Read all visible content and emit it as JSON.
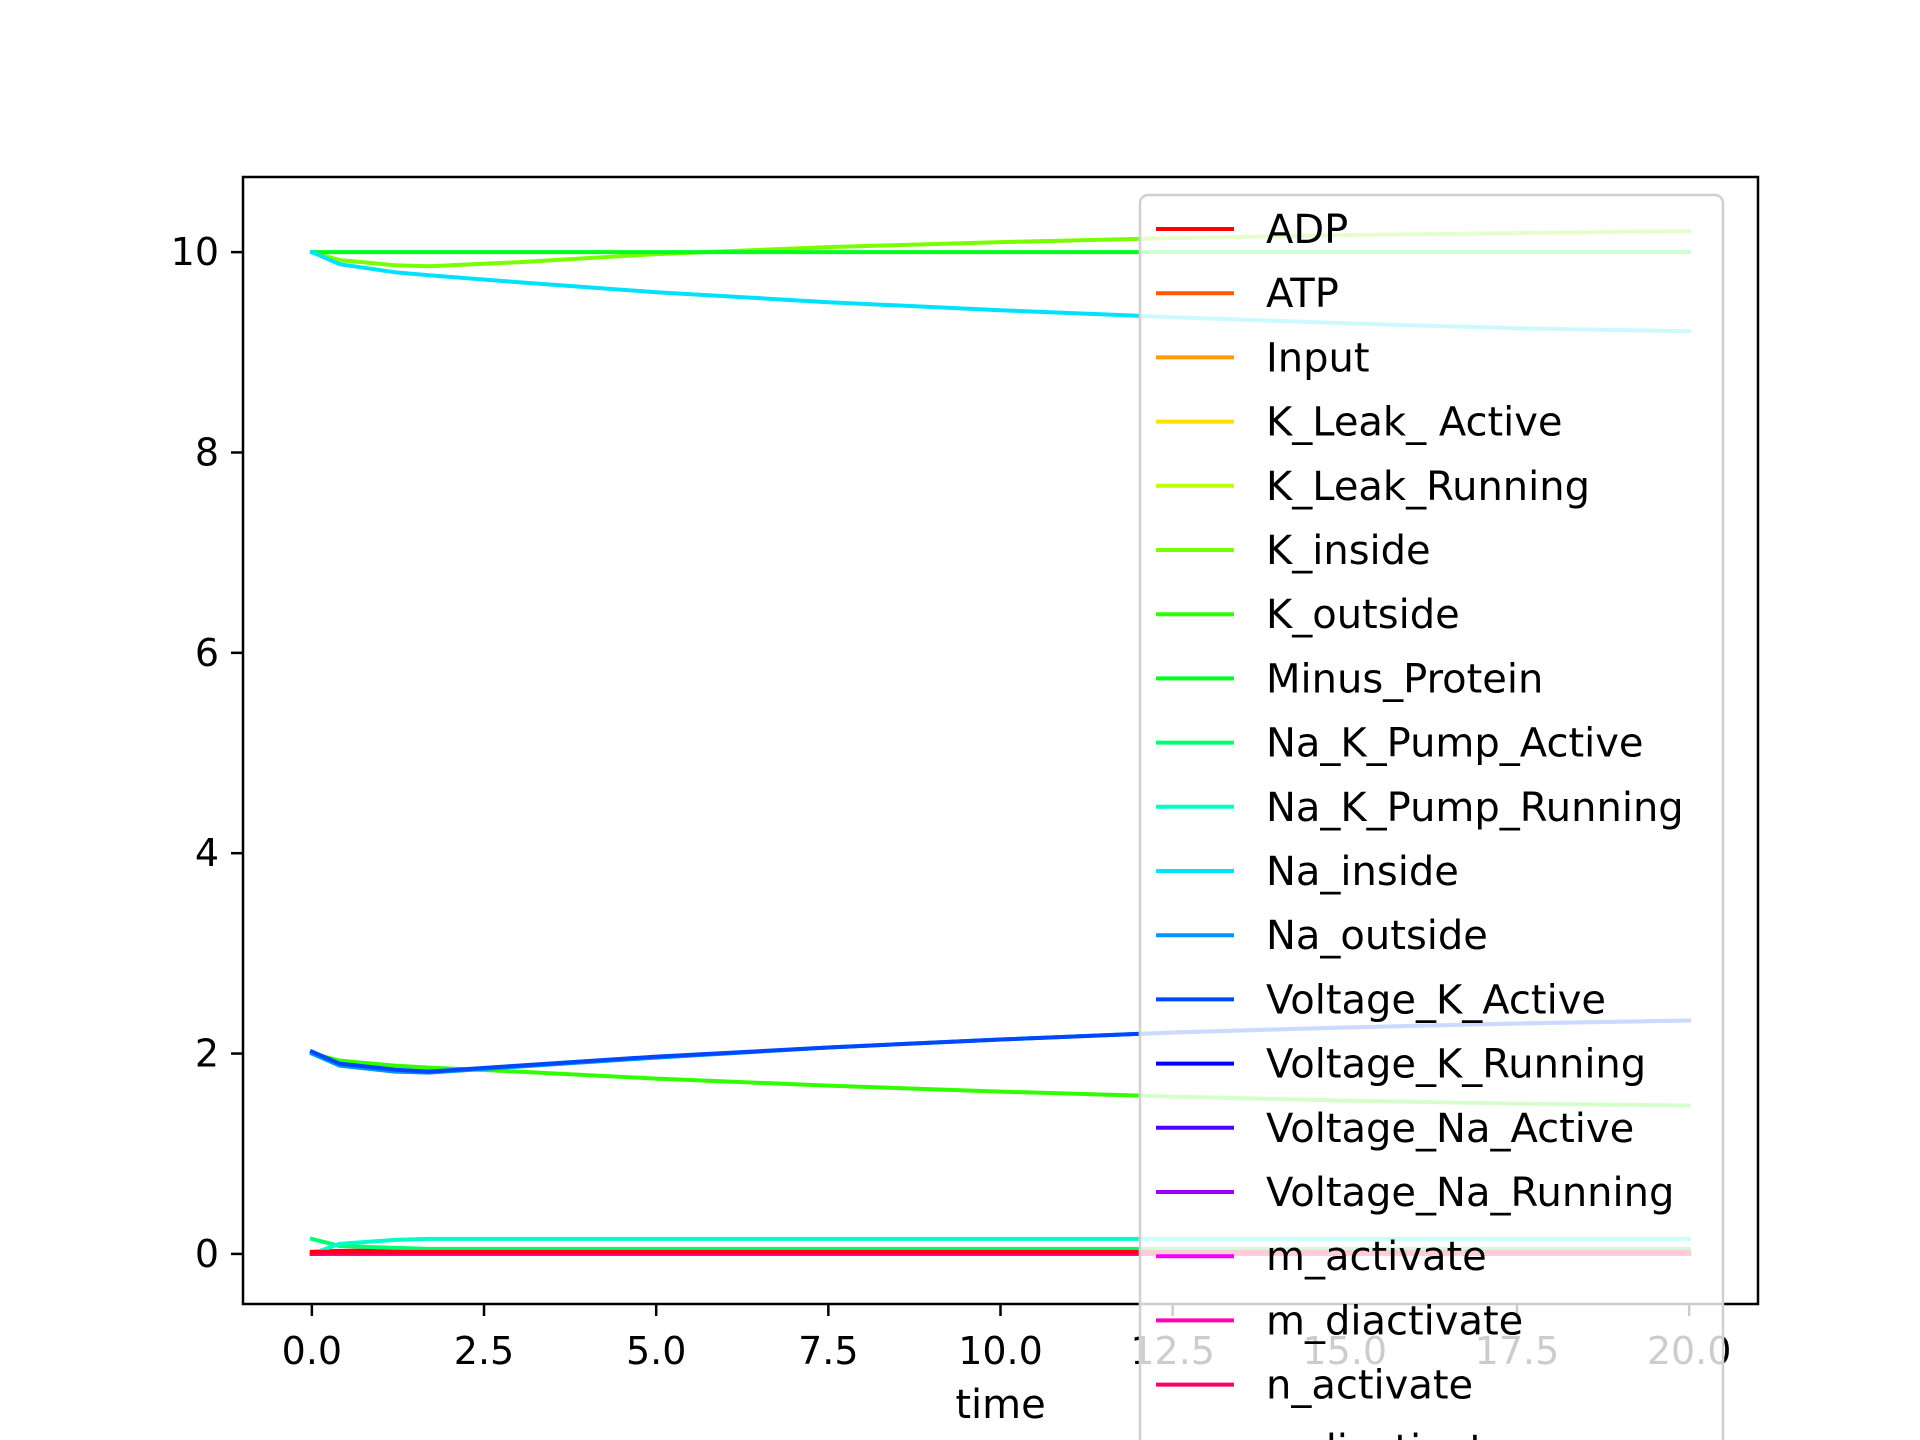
{
  "chart_data": {
    "type": "line",
    "xlabel": "time",
    "ylabel": "",
    "xlim": [
      -1.0,
      21.0
    ],
    "ylim": [
      -0.5,
      10.75
    ],
    "xticks": [
      0.0,
      2.5,
      5.0,
      7.5,
      10.0,
      12.5,
      15.0,
      17.5,
      20.0
    ],
    "xtick_labels": [
      "0.0",
      "2.5",
      "5.0",
      "7.5",
      "10.0",
      "12.5",
      "15.0",
      "17.5",
      "20.0"
    ],
    "yticks": [
      0,
      2,
      4,
      6,
      8,
      10
    ],
    "ytick_labels": [
      "0",
      "2",
      "4",
      "6",
      "8",
      "10"
    ],
    "grid": false,
    "legend_position": "upper-right",
    "x": [
      0,
      0.4,
      1.2,
      1.7,
      3,
      5,
      7.5,
      10,
      12.5,
      15,
      17.5,
      20
    ],
    "series": [
      {
        "name": "ADP",
        "color": "#ff0000",
        "values": [
          0.02,
          0.03,
          0.035,
          0.04,
          0.04,
          0.04,
          0.04,
          0.04,
          0.04,
          0.04,
          0.04,
          0.04
        ]
      },
      {
        "name": "ATP",
        "color": "#ff5a00",
        "values": [
          0.0,
          0.0,
          0.0,
          0.0,
          0.0,
          0.0,
          0.0,
          0.0,
          0.0,
          0.0,
          0.0,
          0.0
        ]
      },
      {
        "name": "Input",
        "color": "#ff9a00",
        "values": [
          0.0,
          0.0,
          0.0,
          0.0,
          0.0,
          0.0,
          0.0,
          0.0,
          0.0,
          0.0,
          0.0,
          0.0
        ]
      },
      {
        "name": "K_Leak_ Active",
        "color": "#ffe000",
        "values": [
          0.0,
          0.0,
          0.0,
          0.0,
          0.0,
          0.0,
          0.0,
          0.0,
          0.0,
          0.0,
          0.0,
          0.0
        ]
      },
      {
        "name": "K_Leak_Running",
        "color": "#c0ff00",
        "values": [
          0.0,
          0.0,
          0.0,
          0.0,
          0.0,
          0.0,
          0.0,
          0.0,
          0.0,
          0.0,
          0.0,
          0.0
        ]
      },
      {
        "name": "K_inside",
        "color": "#78ff00",
        "values": [
          10.0,
          9.92,
          9.87,
          9.86,
          9.9,
          9.98,
          10.05,
          10.1,
          10.14,
          10.17,
          10.19,
          10.21
        ]
      },
      {
        "name": "K_outside",
        "color": "#30ff00",
        "values": [
          2.0,
          1.93,
          1.88,
          1.86,
          1.82,
          1.75,
          1.68,
          1.62,
          1.57,
          1.53,
          1.5,
          1.48
        ]
      },
      {
        "name": "Minus_Protein",
        "color": "#00ff20",
        "values": [
          10.0,
          10.0,
          10.0,
          10.0,
          10.0,
          10.0,
          10.0,
          10.0,
          10.0,
          10.0,
          10.0,
          10.0
        ]
      },
      {
        "name": "Na_K_Pump_Active",
        "color": "#00ff70",
        "values": [
          0.15,
          0.08,
          0.06,
          0.05,
          0.05,
          0.05,
          0.05,
          0.05,
          0.05,
          0.05,
          0.05,
          0.05
        ]
      },
      {
        "name": "Na_K_Pump_Running",
        "color": "#00ffc8",
        "values": [
          0.0,
          0.1,
          0.14,
          0.15,
          0.15,
          0.15,
          0.15,
          0.15,
          0.15,
          0.15,
          0.15,
          0.15
        ]
      },
      {
        "name": "Na_inside",
        "color": "#00e0ff",
        "values": [
          10.0,
          9.88,
          9.8,
          9.77,
          9.7,
          9.6,
          9.5,
          9.42,
          9.35,
          9.29,
          9.24,
          9.21
        ]
      },
      {
        "name": "Na_outside",
        "color": "#0095ff",
        "values": [
          2.0,
          1.88,
          1.82,
          1.81,
          1.87,
          1.96,
          2.06,
          2.14,
          2.21,
          2.26,
          2.3,
          2.33
        ]
      },
      {
        "name": "Voltage_K_Active",
        "color": "#0048ff",
        "values": [
          2.02,
          1.9,
          1.84,
          1.82,
          1.88,
          1.97,
          2.06,
          2.14,
          2.21,
          2.26,
          2.3,
          2.33
        ]
      },
      {
        "name": "Voltage_K_Running",
        "color": "#0000ff",
        "values": [
          0.0,
          0.0,
          0.0,
          0.0,
          0.0,
          0.0,
          0.0,
          0.0,
          0.0,
          0.0,
          0.0,
          0.0
        ]
      },
      {
        "name": "Voltage_Na_Active",
        "color": "#5000ff",
        "values": [
          0.0,
          0.0,
          0.0,
          0.0,
          0.0,
          0.0,
          0.0,
          0.0,
          0.0,
          0.0,
          0.0,
          0.0
        ]
      },
      {
        "name": "Voltage_Na_Running",
        "color": "#a000ff",
        "values": [
          0.0,
          0.0,
          0.0,
          0.0,
          0.0,
          0.0,
          0.0,
          0.0,
          0.0,
          0.0,
          0.0,
          0.0
        ]
      },
      {
        "name": "m_activate",
        "color": "#f000ff",
        "values": [
          0.0,
          0.0,
          0.0,
          0.0,
          0.0,
          0.0,
          0.0,
          0.0,
          0.0,
          0.0,
          0.0,
          0.0
        ]
      },
      {
        "name": "m_diactivate",
        "color": "#ff00b4",
        "values": [
          0.0,
          0.0,
          0.0,
          0.0,
          0.0,
          0.0,
          0.0,
          0.0,
          0.0,
          0.0,
          0.0,
          0.0
        ]
      },
      {
        "name": "n_activate",
        "color": "#ff0064",
        "values": [
          0.0,
          0.01,
          0.01,
          0.01,
          0.01,
          0.01,
          0.01,
          0.01,
          0.01,
          0.01,
          0.01,
          0.01
        ]
      },
      {
        "name": "n_diactivate",
        "color": "#ff0018",
        "values": [
          0.02,
          0.02,
          0.02,
          0.02,
          0.02,
          0.02,
          0.02,
          0.02,
          0.02,
          0.02,
          0.02,
          0.02
        ]
      }
    ]
  }
}
